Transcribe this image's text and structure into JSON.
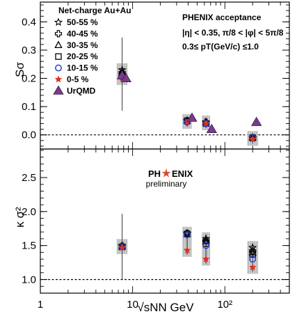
{
  "chart_data": [
    {
      "type": "scatter",
      "panel": "top",
      "ylabel": "Sσ",
      "ylim": [
        -0.05,
        0.47
      ],
      "xlim": [
        1,
        500
      ],
      "xscale": "log",
      "yticks": [
        "0.0",
        "0.1",
        "0.2",
        "0.3",
        "0.4"
      ],
      "yticks_v": [
        0.0,
        0.1,
        0.2,
        0.3,
        0.4
      ],
      "reference_line": 0.0,
      "legend_title": "Net-charge Au+Au",
      "acceptance": {
        "title": "PHENIX acceptance",
        "line1": "|η| < 0.35, π/8 < |φ| < 5π/8",
        "line2": "0.3≤ pT(GeV/c) ≤1.0"
      },
      "series": [
        {
          "name": "50-55 %",
          "marker": "star-open",
          "color": "#000000",
          "x": [
            7.7,
            39,
            62.4,
            200
          ],
          "y": [
            0.23,
            0.05,
            0.045,
            -0.01
          ]
        },
        {
          "name": "40-45 %",
          "marker": "cross-open",
          "color": "#000000",
          "x": [
            7.7,
            39,
            62.4,
            200
          ],
          "y": [
            0.22,
            0.05,
            0.045,
            -0.01
          ]
        },
        {
          "name": "30-35 %",
          "marker": "triangle-open",
          "color": "#000000",
          "x": [
            7.7,
            39,
            62.4,
            200
          ],
          "y": [
            0.22,
            0.05,
            0.045,
            -0.01
          ]
        },
        {
          "name": "20-25 %",
          "marker": "square-open",
          "color": "#000000",
          "x": [
            7.7,
            39,
            62.4,
            200
          ],
          "y": [
            0.21,
            0.05,
            0.04,
            -0.01
          ]
        },
        {
          "name": "10-15 %",
          "marker": "circle-open",
          "color": "#1f3fd8",
          "x": [
            7.7,
            39,
            62.4,
            200
          ],
          "y": [
            0.205,
            0.045,
            0.04,
            -0.01
          ]
        },
        {
          "name": "0-5 %",
          "marker": "star-filled",
          "color": "#e0301e",
          "x": [
            7.7,
            39,
            62.4,
            200
          ],
          "y": [
            0.2,
            0.045,
            0.04,
            -0.015
          ]
        },
        {
          "name": "UrQMD",
          "marker": "triangle-filled",
          "color": "#7a3a8c",
          "x": [
            7.7,
            8.5,
            44,
            72,
            220
          ],
          "y": [
            0.21,
            0.2,
            0.06,
            0.02,
            0.045
          ]
        }
      ]
    },
    {
      "type": "scatter",
      "panel": "bottom",
      "ylabel": "κ σ²",
      "ylim": [
        0.8,
        2.92
      ],
      "xlim": [
        1,
        500
      ],
      "xscale": "log",
      "xlabel": "√sNN GeV",
      "yticks": [
        "1.0",
        "1.5",
        "2.0",
        "2.5"
      ],
      "yticks_v": [
        1.0,
        1.5,
        2.0,
        2.5
      ],
      "xticks": [
        "1",
        "10",
        "10²"
      ],
      "xticks_v": [
        1,
        10,
        100
      ],
      "reference_line": 1.0,
      "logo": {
        "left": "PH",
        "right": "ENIX",
        "sub": "preliminary"
      },
      "series": [
        {
          "name": "50-55 %",
          "marker": "star-open",
          "color": "#000000",
          "x": [
            7.7,
            39,
            62.4,
            200
          ],
          "y": [
            1.5,
            1.68,
            1.6,
            1.47
          ]
        },
        {
          "name": "40-45 %",
          "marker": "cross-open",
          "color": "#000000",
          "x": [
            7.7,
            39,
            62.4,
            200
          ],
          "y": [
            1.49,
            1.68,
            1.57,
            1.42
          ]
        },
        {
          "name": "30-35 %",
          "marker": "triangle-open",
          "color": "#000000",
          "x": [
            7.7,
            39,
            62.4,
            200
          ],
          "y": [
            1.49,
            1.67,
            1.56,
            1.4
          ]
        },
        {
          "name": "20-25 %",
          "marker": "square-open",
          "color": "#000000",
          "x": [
            7.7,
            39,
            62.4,
            200
          ],
          "y": [
            1.48,
            1.67,
            1.53,
            1.37
          ]
        },
        {
          "name": "10-15 %",
          "marker": "circle-open",
          "color": "#1f3fd8",
          "x": [
            7.7,
            39,
            62.4,
            200
          ],
          "y": [
            1.48,
            1.66,
            1.5,
            1.3
          ]
        },
        {
          "name": "0-5 %",
          "marker": "star-filled",
          "color": "#e0301e",
          "x": [
            7.7,
            39,
            62.4,
            200
          ],
          "y": [
            1.47,
            1.43,
            1.3,
            1.18
          ]
        }
      ]
    }
  ]
}
